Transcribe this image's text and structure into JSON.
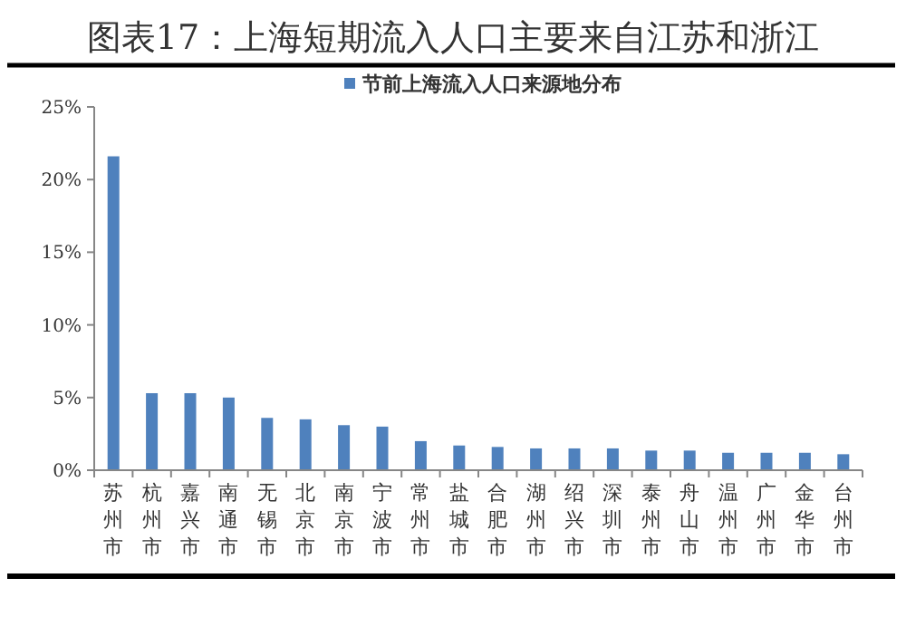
{
  "chart_data": {
    "type": "bar",
    "title": "图表17：上海短期流入人口主要来自江苏和浙江",
    "categories": [
      "苏州市",
      "杭州市",
      "嘉兴市",
      "南通市",
      "无锡市",
      "北京市",
      "南京市",
      "宁波市",
      "常州市",
      "盐城市",
      "合肥市",
      "湖州市",
      "绍兴市",
      "深圳市",
      "泰州市",
      "舟山市",
      "温州市",
      "广州市",
      "金华市",
      "台州市"
    ],
    "series": [
      {
        "name": "节前上海流入人口来源地分布",
        "color": "#4f81bd",
        "values": [
          21.6,
          5.3,
          5.3,
          5.0,
          3.6,
          3.5,
          3.1,
          3.0,
          2.0,
          1.7,
          1.6,
          1.5,
          1.5,
          1.5,
          1.35,
          1.35,
          1.2,
          1.2,
          1.2,
          1.1
        ]
      }
    ],
    "ylim": [
      0,
      25
    ],
    "yticks": [
      {
        "value": 0,
        "label": "0%"
      },
      {
        "value": 5,
        "label": "5%"
      },
      {
        "value": 10,
        "label": "10%"
      },
      {
        "value": 15,
        "label": "15%"
      },
      {
        "value": 20,
        "label": "20%"
      },
      {
        "value": 25,
        "label": "25%"
      }
    ],
    "grid": false,
    "legend": "top"
  }
}
